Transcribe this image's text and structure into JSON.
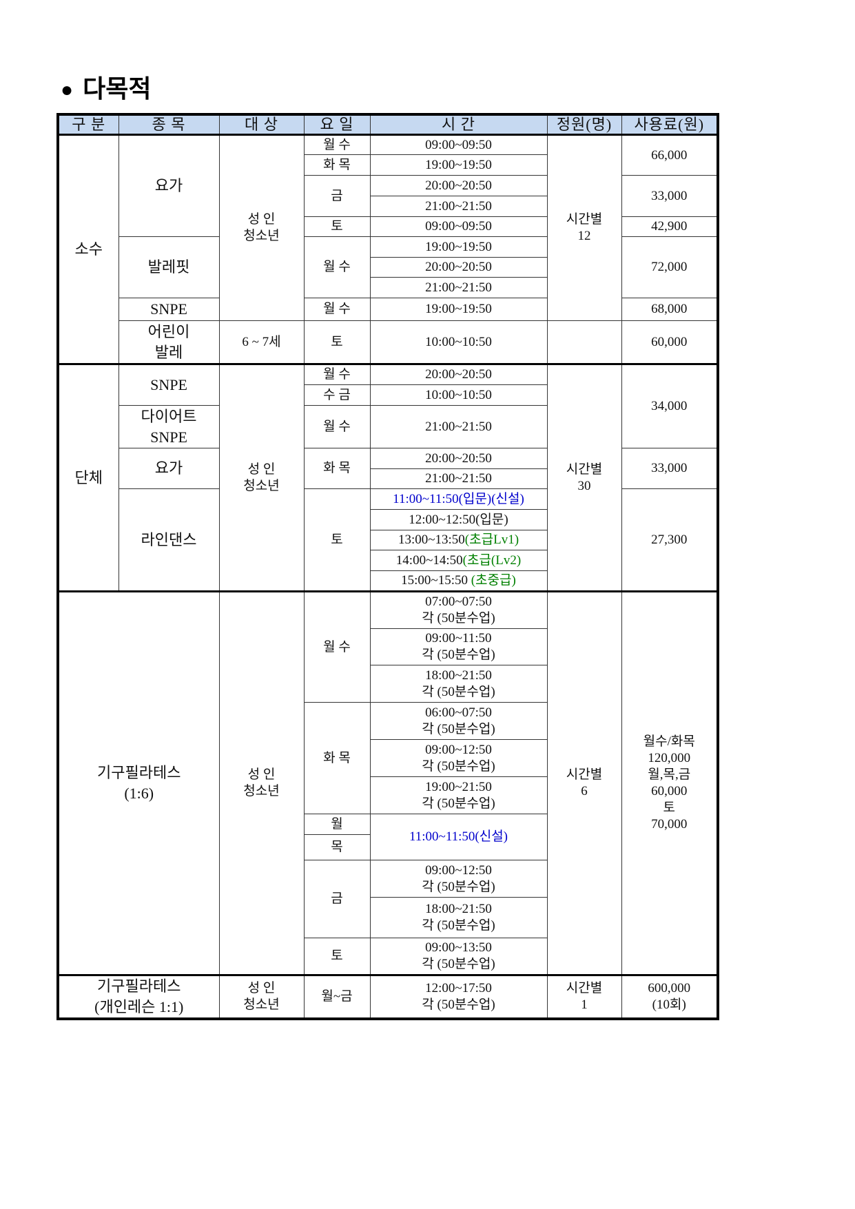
{
  "title": "다목적",
  "colors": {
    "header_bg": "#c6d9f1",
    "new_class": "#0000cc",
    "level": "#008000"
  },
  "headers": [
    "구 분",
    "종 목",
    "대 상",
    "요 일",
    "시 간",
    "정원(명)",
    "사용료(원)"
  ],
  "sosu": {
    "category": "소수",
    "programs": {
      "yoga": "요가",
      "balletfit": "발레핏",
      "snpe": "SNPE",
      "kids_ballet": [
        "어린이",
        "발레"
      ]
    },
    "targets": {
      "adult": [
        "성 인",
        "청소년"
      ],
      "kids": "6 ~ 7세"
    },
    "days": [
      "월 수",
      "화 목",
      "금",
      "토",
      "월 수",
      "월 수",
      "토"
    ],
    "times": [
      "09:00~09:50",
      "19:00~19:50",
      "20:00~20:50",
      "21:00~21:50",
      "09:00~09:50",
      "19:00~19:50",
      "20:00~20:50",
      "21:00~21:50",
      "19:00~19:50",
      "10:00~10:50"
    ],
    "capacity": [
      "시간별",
      "12"
    ],
    "fees": [
      "66,000",
      "33,000",
      "42,900",
      "72,000",
      "68,000",
      "60,000"
    ]
  },
  "danche": {
    "category": "단체",
    "programs": {
      "snpe": "SNPE",
      "diet_snpe": [
        "다이어트",
        "SNPE"
      ],
      "yoga": "요가",
      "linedance": "라인댄스"
    },
    "target": [
      "성 인",
      "청소년"
    ],
    "days": [
      "월 수",
      "수 금",
      "월 수",
      "화 목",
      "토"
    ],
    "times": [
      "20:00~20:50",
      "10:00~10:50",
      "21:00~21:50",
      "20:00~20:50",
      "21:00~21:50",
      "11:00~11:50(입문)(신설)",
      "12:00~12:50(입문)",
      [
        "13:00~13:50",
        "(초급Lv1)"
      ],
      [
        "14:00~14:50",
        "(초급(Lv2)"
      ],
      [
        "15:00~15:50 ",
        "(초중급)"
      ]
    ],
    "capacity": [
      "시간별",
      "30"
    ],
    "fees": [
      "34,000",
      "33,000",
      "27,300"
    ]
  },
  "pilates": {
    "name": [
      "기구필라테스",
      "(1:6)"
    ],
    "target": [
      "성 인",
      "청소년"
    ],
    "days": [
      "월 수",
      "화 목",
      "월",
      "목",
      "금",
      "토"
    ],
    "times": [
      [
        "07:00~07:50",
        "각 (50분수업)"
      ],
      [
        "09:00~11:50",
        "각 (50분수업)"
      ],
      [
        "18:00~21:50",
        "각 (50분수업)"
      ],
      [
        "06:00~07:50",
        "각 (50분수업)"
      ],
      [
        "09:00~12:50",
        "각 (50분수업)"
      ],
      [
        "19:00~21:50",
        "각 (50분수업)"
      ],
      [
        "09:00~12:50",
        "각 (50분수업)"
      ],
      [
        "18:00~21:50",
        "각 (50분수업)"
      ],
      [
        "09:00~13:50",
        "각 (50분수업)"
      ]
    ],
    "new_time": "11:00~11:50(신설)",
    "capacity": [
      "시간별",
      "6"
    ],
    "fee": [
      "월수/화목",
      "120,000",
      "월,목,금",
      "60,000",
      "토",
      "70,000"
    ]
  },
  "private": {
    "name": [
      "기구필라테스",
      "(개인레슨 1:1)"
    ],
    "target": [
      "성 인",
      "청소년"
    ],
    "day": "월~금",
    "time": [
      "12:00~17:50",
      "각 (50분수업)"
    ],
    "capacity": [
      "시간별",
      "1"
    ],
    "fee": [
      "600,000",
      "(10회)"
    ]
  }
}
